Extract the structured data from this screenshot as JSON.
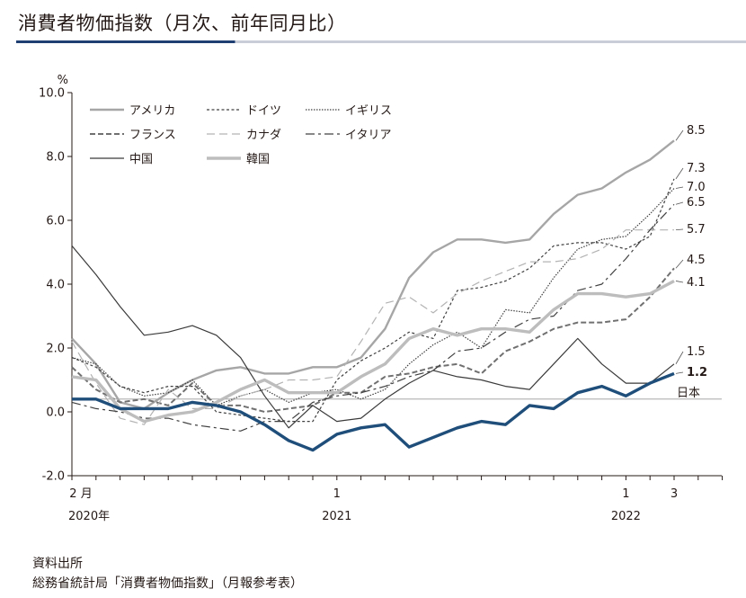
{
  "title": "消費者物価指数（月次、前年同月比）",
  "source_label": "資料出所",
  "source_text": "総務省統計局「消費者物価指数」（月報参考表）",
  "chart_data": {
    "type": "line",
    "ylabel": "%",
    "ylim": [
      -2.0,
      10.0
    ],
    "yticks": [
      "10.0",
      "8.0",
      "6.0",
      "4.0",
      "2.0",
      "0.0",
      "-2.0"
    ],
    "x_tick_labels": [
      {
        "month": 0,
        "label": "2 月"
      },
      {
        "month": 11,
        "label": "1"
      },
      {
        "month": 23,
        "label": "1"
      },
      {
        "month": 25,
        "label": "3"
      }
    ],
    "x_year_labels": [
      {
        "month": 0,
        "label": "2020年"
      },
      {
        "month": 11,
        "label": "2021"
      },
      {
        "month": 23,
        "label": "2022"
      }
    ],
    "reference_line": {
      "value": 0.4,
      "label": "日本"
    },
    "series": [
      {
        "name": "アメリカ",
        "color": "#a6a6a6",
        "dash": "",
        "width": 2.4,
        "end_label": "8.5",
        "values": [
          2.3,
          1.5,
          0.3,
          0.1,
          0.6,
          1.0,
          1.3,
          1.4,
          1.2,
          1.2,
          1.4,
          1.4,
          1.7,
          2.6,
          4.2,
          5.0,
          5.4,
          5.4,
          5.3,
          5.4,
          6.2,
          6.8,
          7.0,
          7.5,
          7.9,
          8.5
        ]
      },
      {
        "name": "ドイツ",
        "color": "#404040",
        "dash": "3,2.5",
        "width": 1.2,
        "end_label": "7.3",
        "values": [
          1.7,
          1.4,
          0.8,
          0.6,
          0.8,
          0.8,
          0.0,
          -0.1,
          -0.2,
          -0.3,
          -0.3,
          1.0,
          1.6,
          2.0,
          2.5,
          2.3,
          3.8,
          3.9,
          4.1,
          4.5,
          5.2,
          5.3,
          5.3,
          5.1,
          5.5,
          7.3
        ]
      },
      {
        "name": "イギリス",
        "color": "#404040",
        "dash": "1.5,1.5",
        "width": 1.2,
        "end_label": "7.0",
        "values": [
          1.7,
          1.5,
          0.8,
          0.5,
          0.6,
          1.0,
          0.2,
          0.5,
          0.7,
          0.3,
          0.6,
          0.7,
          0.4,
          0.7,
          1.5,
          2.1,
          2.5,
          2.0,
          3.2,
          3.1,
          4.2,
          5.1,
          5.4,
          5.5,
          6.2,
          7.0
        ]
      },
      {
        "name": "フランス",
        "color": "#707070",
        "dash": "6,3",
        "width": 2.0,
        "end_label": "4.5",
        "values": [
          1.4,
          0.7,
          0.3,
          0.4,
          0.2,
          0.9,
          0.2,
          0.2,
          0.0,
          0.1,
          0.2,
          0.6,
          0.6,
          1.1,
          1.2,
          1.4,
          1.5,
          1.2,
          1.9,
          2.2,
          2.6,
          2.8,
          2.8,
          2.9,
          3.6,
          4.5
        ]
      },
      {
        "name": "カナダ",
        "color": "#b3b3b3",
        "dash": "9,5",
        "width": 1.2,
        "end_label": "5.7",
        "values": [
          2.2,
          0.9,
          -0.2,
          -0.4,
          0.7,
          0.1,
          0.1,
          0.5,
          0.7,
          1.0,
          1.0,
          1.1,
          2.2,
          3.4,
          3.6,
          3.1,
          3.7,
          4.1,
          4.4,
          4.7,
          4.7,
          4.8,
          5.1,
          5.7,
          5.7,
          5.7
        ]
      },
      {
        "name": "イタリア",
        "color": "#404040",
        "dash": "10,4,3,4",
        "width": 1.2,
        "end_label": "6.5",
        "values": [
          0.3,
          0.1,
          0.0,
          -0.2,
          -0.2,
          -0.4,
          -0.5,
          -0.6,
          -0.3,
          -0.3,
          0.3,
          0.5,
          0.6,
          0.8,
          1.1,
          1.3,
          1.9,
          2.0,
          2.5,
          2.9,
          3.0,
          3.8,
          4.0,
          4.8,
          5.7,
          6.5
        ]
      },
      {
        "name": "中国",
        "color": "#3a3a3a",
        "dash": "",
        "width": 1.2,
        "end_label": "1.5",
        "values": [
          5.2,
          4.3,
          3.3,
          2.4,
          2.5,
          2.7,
          2.4,
          1.7,
          0.5,
          -0.5,
          0.2,
          -0.3,
          -0.2,
          0.4,
          0.9,
          1.3,
          1.1,
          1.0,
          0.8,
          0.7,
          1.5,
          2.3,
          1.5,
          0.9,
          0.9,
          1.5
        ]
      },
      {
        "name": "韓国",
        "color": "#bdbdbd",
        "dash": "",
        "width": 3.4,
        "end_label": "4.1",
        "values": [
          1.1,
          1.0,
          0.1,
          -0.3,
          -0.1,
          0.0,
          0.3,
          0.7,
          1.0,
          0.6,
          0.6,
          0.6,
          1.1,
          1.5,
          2.3,
          2.6,
          2.4,
          2.6,
          2.6,
          2.5,
          3.2,
          3.7,
          3.7,
          3.6,
          3.7,
          4.1
        ]
      },
      {
        "name": "日本",
        "color": "#1f4e7a",
        "dash": "",
        "width": 3.4,
        "end_label": "1.2",
        "values": [
          0.4,
          0.4,
          0.1,
          0.1,
          0.1,
          0.3,
          0.2,
          0.0,
          -0.4,
          -0.9,
          -1.2,
          -0.7,
          -0.5,
          -0.4,
          -1.1,
          -0.8,
          -0.5,
          -0.3,
          -0.4,
          0.2,
          0.1,
          0.6,
          0.8,
          0.5,
          0.9,
          1.2
        ]
      }
    ]
  }
}
